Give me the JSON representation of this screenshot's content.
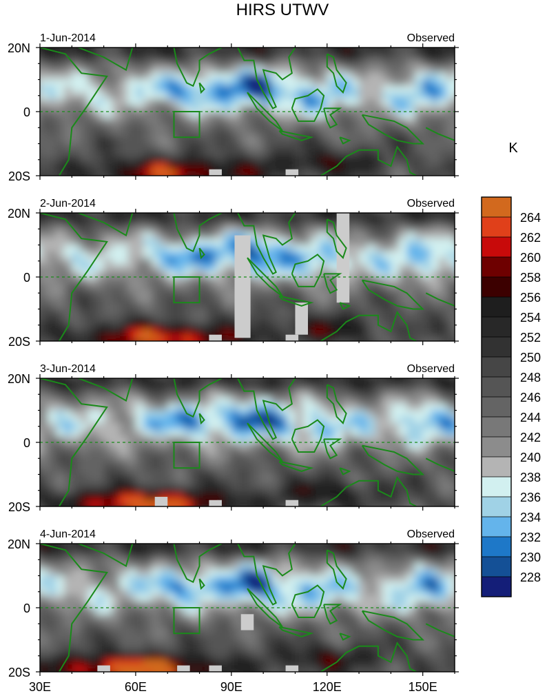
{
  "chart_data": {
    "type": "heatmap",
    "title": "HIRS UTWV",
    "colorbar": {
      "unit": "K",
      "levels": [
        264,
        262,
        260,
        258,
        256,
        254,
        252,
        250,
        248,
        246,
        244,
        242,
        240,
        238,
        236,
        234,
        232,
        230,
        228
      ],
      "colors": [
        "#d2691e",
        "#e0401a",
        "#c80a0a",
        "#6e0000",
        "#3c0000",
        "#1e1e1e",
        "#282828",
        "#323232",
        "#464646",
        "#555555",
        "#646464",
        "#787878",
        "#8c8c8c",
        "#b4b4b4",
        "#d2f0f0",
        "#a0d2e6",
        "#64b4eb",
        "#1e78c8",
        "#145096",
        "#141e78"
      ]
    },
    "x_ticks": [
      "30E",
      "60E",
      "90E",
      "120E",
      "150E"
    ],
    "y_ticks": [
      "20N",
      "0",
      "20S"
    ],
    "xlim": [
      30,
      160
    ],
    "ylim": [
      -20,
      20
    ],
    "panels": [
      {
        "date": "1-Jun-2014",
        "label": "Observed"
      },
      {
        "date": "2-Jun-2014",
        "label": "Observed"
      },
      {
        "date": "3-Jun-2014",
        "label": "Observed"
      },
      {
        "date": "4-Jun-2014",
        "label": "Observed"
      }
    ]
  }
}
